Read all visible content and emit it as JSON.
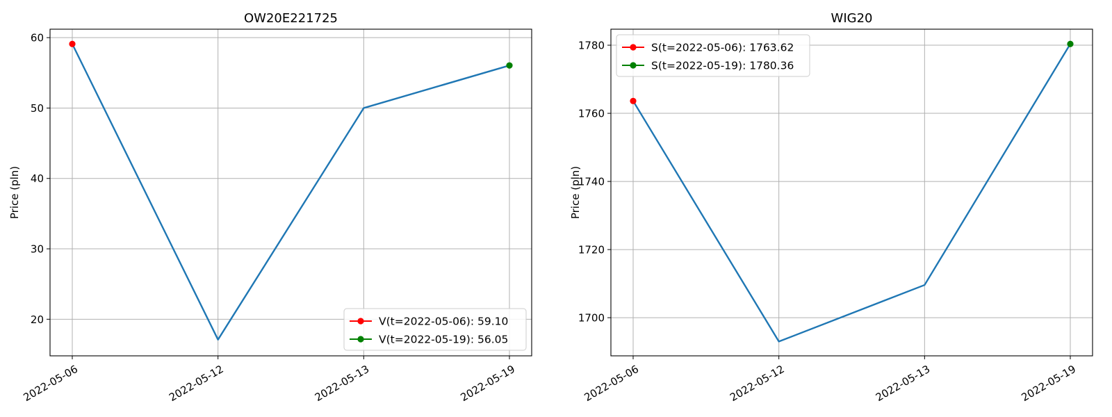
{
  "chart_data": [
    {
      "type": "line",
      "title": "OW20E221725",
      "ylabel": "Price (pln)",
      "xlabel": "",
      "x": [
        "2022-05-06",
        "2022-05-12",
        "2022-05-13",
        "2022-05-19"
      ],
      "series": [
        {
          "values": [
            59.1,
            17.1,
            50.0,
            56.05
          ],
          "color": "#1f77b4"
        }
      ],
      "yticks": [
        20,
        30,
        40,
        50,
        60
      ],
      "ylim": [
        14.8,
        61.2
      ],
      "grid": true,
      "legend": {
        "placement": "lower-right",
        "entries": [
          {
            "label": "V(t=2022-05-06): 59.10",
            "color": "#ff0000",
            "x": "2022-05-06",
            "y": 59.1
          },
          {
            "label": "V(t=2022-05-19): 56.05",
            "color": "#008000",
            "x": "2022-05-19",
            "y": 56.05
          }
        ]
      }
    },
    {
      "type": "line",
      "title": "WIG20",
      "ylabel": "Price (pln)",
      "xlabel": "",
      "x": [
        "2022-05-06",
        "2022-05-12",
        "2022-05-13",
        "2022-05-19"
      ],
      "series": [
        {
          "values": [
            1763.62,
            1693.0,
            1709.6,
            1780.36
          ],
          "color": "#1f77b4"
        }
      ],
      "yticks": [
        1700,
        1720,
        1740,
        1760,
        1780
      ],
      "ylim": [
        1688.8,
        1784.7
      ],
      "grid": true,
      "legend": {
        "placement": "top-left",
        "entries": [
          {
            "label": "S(t=2022-05-06): 1763.62",
            "color": "#ff0000",
            "x": "2022-05-06",
            "y": 1763.62
          },
          {
            "label": "S(t=2022-05-19): 1780.36",
            "color": "#008000",
            "x": "2022-05-19",
            "y": 1780.36
          }
        ]
      }
    }
  ]
}
